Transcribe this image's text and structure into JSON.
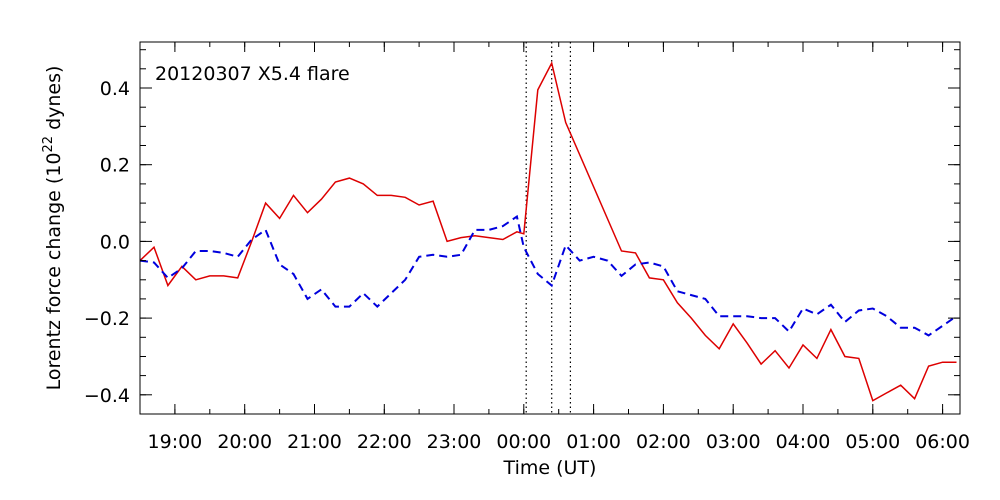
{
  "chart_data": {
    "type": "line",
    "title": "",
    "annotation": "20120307 X5.4 flare",
    "xlabel": "Time (UT)",
    "ylabel_prefix": "Lorentz force change (10",
    "ylabel_exponent": "22",
    "ylabel_suffix": " dynes)",
    "xlim": [
      "2012-03-06 18:30",
      "2012-03-07 06:15"
    ],
    "ylim": [
      -0.45,
      0.52
    ],
    "x_ticks": [
      {
        "time": "2012-03-06 19:00",
        "label": "19:00"
      },
      {
        "time": "2012-03-06 20:00",
        "label": "20:00"
      },
      {
        "time": "2012-03-06 21:00",
        "label": "21:00"
      },
      {
        "time": "2012-03-06 22:00",
        "label": "22:00"
      },
      {
        "time": "2012-03-06 23:00",
        "label": "23:00"
      },
      {
        "time": "2012-03-07 00:00",
        "label": "00:00"
      },
      {
        "time": "2012-03-07 01:00",
        "label": "01:00"
      },
      {
        "time": "2012-03-07 02:00",
        "label": "02:00"
      },
      {
        "time": "2012-03-07 03:00",
        "label": "03:00"
      },
      {
        "time": "2012-03-07 04:00",
        "label": "04:00"
      },
      {
        "time": "2012-03-07 05:00",
        "label": "05:00"
      },
      {
        "time": "2012-03-07 06:00",
        "label": "06:00"
      }
    ],
    "y_ticks": [
      {
        "value": 0.4,
        "label": "0.4"
      },
      {
        "value": 0.2,
        "label": "0.2"
      },
      {
        "value": 0.0,
        "label": "0.0"
      },
      {
        "value": -0.2,
        "label": "−0.2"
      },
      {
        "value": -0.4,
        "label": "−0.4"
      }
    ],
    "vertical_markers": [
      "2012-03-07 00:02",
      "2012-03-07 00:24",
      "2012-03-07 00:40"
    ],
    "grid": false,
    "series": [
      {
        "color": "#dd0000",
        "style": "solid",
        "x": [
          "2012-03-06 18:30",
          "2012-03-06 18:42",
          "2012-03-06 18:54",
          "2012-03-06 19:06",
          "2012-03-06 19:18",
          "2012-03-06 19:30",
          "2012-03-06 19:42",
          "2012-03-06 19:54",
          "2012-03-06 20:06",
          "2012-03-06 20:18",
          "2012-03-06 20:30",
          "2012-03-06 20:42",
          "2012-03-06 20:54",
          "2012-03-06 21:06",
          "2012-03-06 21:18",
          "2012-03-06 21:30",
          "2012-03-06 21:42",
          "2012-03-06 21:54",
          "2012-03-06 22:06",
          "2012-03-06 22:18",
          "2012-03-06 22:30",
          "2012-03-06 22:42",
          "2012-03-06 22:54",
          "2012-03-06 23:06",
          "2012-03-06 23:18",
          "2012-03-06 23:30",
          "2012-03-06 23:42",
          "2012-03-06 23:54",
          "2012-03-07 00:00",
          "2012-03-07 00:12",
          "2012-03-07 00:24",
          "2012-03-07 00:36",
          "2012-03-07 01:24",
          "2012-03-07 01:36",
          "2012-03-07 01:48",
          "2012-03-07 02:00",
          "2012-03-07 02:12",
          "2012-03-07 02:24",
          "2012-03-07 02:36",
          "2012-03-07 02:48",
          "2012-03-07 03:00",
          "2012-03-07 03:12",
          "2012-03-07 03:24",
          "2012-03-07 03:36",
          "2012-03-07 03:48",
          "2012-03-07 04:00",
          "2012-03-07 04:12",
          "2012-03-07 04:24",
          "2012-03-07 04:36",
          "2012-03-07 04:48",
          "2012-03-07 05:00",
          "2012-03-07 05:12",
          "2012-03-07 05:24",
          "2012-03-07 05:36",
          "2012-03-07 05:48",
          "2012-03-07 06:00",
          "2012-03-07 06:12"
        ],
        "y": [
          -0.05,
          -0.015,
          -0.115,
          -0.065,
          -0.1,
          -0.09,
          -0.09,
          -0.095,
          0.0,
          0.1,
          0.06,
          0.12,
          0.075,
          0.11,
          0.155,
          0.165,
          0.15,
          0.12,
          0.12,
          0.115,
          0.095,
          0.105,
          0.0,
          0.01,
          0.015,
          0.01,
          0.005,
          0.025,
          0.02,
          0.395,
          0.465,
          0.31,
          -0.025,
          -0.03,
          -0.095,
          -0.1,
          -0.16,
          -0.2,
          -0.245,
          -0.28,
          -0.215,
          -0.265,
          -0.32,
          -0.285,
          -0.33,
          -0.27,
          -0.305,
          -0.23,
          -0.3,
          -0.305,
          -0.415,
          -0.395,
          -0.375,
          -0.41,
          -0.325,
          -0.315,
          -0.315
        ]
      },
      {
        "color": "#0000dd",
        "style": "dashed",
        "x": [
          "2012-03-06 18:30",
          "2012-03-06 18:42",
          "2012-03-06 18:54",
          "2012-03-06 19:06",
          "2012-03-06 19:18",
          "2012-03-06 19:30",
          "2012-03-06 19:42",
          "2012-03-06 19:54",
          "2012-03-06 20:06",
          "2012-03-06 20:18",
          "2012-03-06 20:30",
          "2012-03-06 20:42",
          "2012-03-06 20:54",
          "2012-03-06 21:06",
          "2012-03-06 21:18",
          "2012-03-06 21:30",
          "2012-03-06 21:42",
          "2012-03-06 21:54",
          "2012-03-06 22:06",
          "2012-03-06 22:18",
          "2012-03-06 22:30",
          "2012-03-06 22:42",
          "2012-03-06 22:54",
          "2012-03-06 23:06",
          "2012-03-06 23:18",
          "2012-03-06 23:30",
          "2012-03-06 23:42",
          "2012-03-06 23:54",
          "2012-03-07 00:00",
          "2012-03-07 00:12",
          "2012-03-07 00:24",
          "2012-03-07 00:36",
          "2012-03-07 00:48",
          "2012-03-07 01:00",
          "2012-03-07 01:12",
          "2012-03-07 01:24",
          "2012-03-07 01:36",
          "2012-03-07 01:48",
          "2012-03-07 02:00",
          "2012-03-07 02:12",
          "2012-03-07 02:24",
          "2012-03-07 02:36",
          "2012-03-07 02:48",
          "2012-03-07 03:00",
          "2012-03-07 03:12",
          "2012-03-07 03:24",
          "2012-03-07 03:36",
          "2012-03-07 03:48",
          "2012-03-07 04:00",
          "2012-03-07 04:12",
          "2012-03-07 04:24",
          "2012-03-07 04:36",
          "2012-03-07 04:48",
          "2012-03-07 05:00",
          "2012-03-07 05:12",
          "2012-03-07 05:24",
          "2012-03-07 05:36",
          "2012-03-07 05:48",
          "2012-03-07 06:00",
          "2012-03-07 06:12"
        ],
        "y": [
          -0.05,
          -0.055,
          -0.095,
          -0.07,
          -0.025,
          -0.025,
          -0.03,
          -0.04,
          0.005,
          0.03,
          -0.06,
          -0.085,
          -0.15,
          -0.125,
          -0.17,
          -0.17,
          -0.135,
          -0.17,
          -0.135,
          -0.1,
          -0.04,
          -0.035,
          -0.04,
          -0.035,
          0.03,
          0.03,
          0.04,
          0.065,
          -0.015,
          -0.085,
          -0.115,
          -0.01,
          -0.05,
          -0.04,
          -0.05,
          -0.09,
          -0.06,
          -0.055,
          -0.065,
          -0.13,
          -0.14,
          -0.15,
          -0.195,
          -0.195,
          -0.195,
          -0.2,
          -0.2,
          -0.235,
          -0.175,
          -0.19,
          -0.165,
          -0.21,
          -0.18,
          -0.175,
          -0.195,
          -0.225,
          -0.225,
          -0.245,
          -0.22,
          -0.195
        ]
      }
    ]
  }
}
